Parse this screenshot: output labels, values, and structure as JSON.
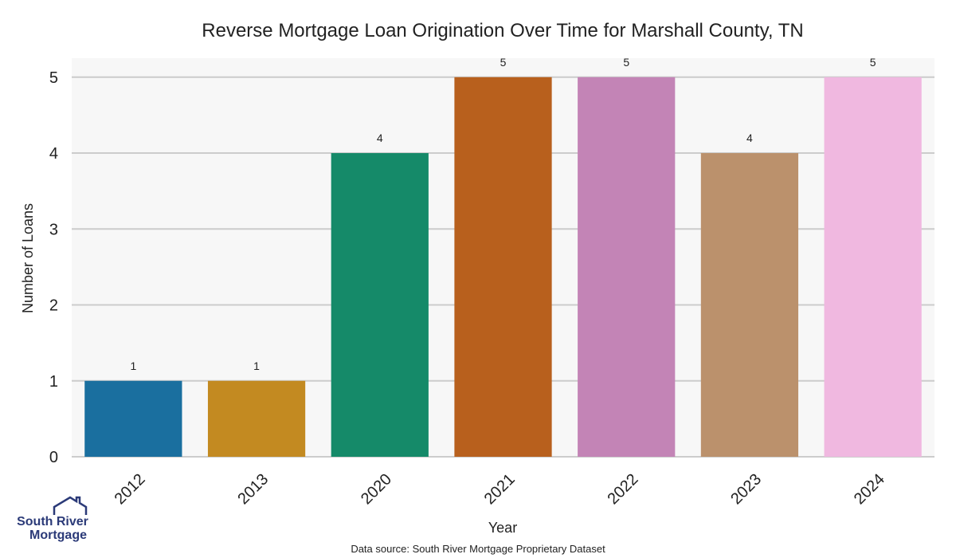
{
  "chart_data": {
    "type": "bar",
    "title": "Reverse Mortgage Loan Origination Over Time for Marshall County, TN",
    "xlabel": "Year",
    "ylabel": "Number of Loans",
    "categories": [
      "2012",
      "2013",
      "2020",
      "2021",
      "2022",
      "2023",
      "2024"
    ],
    "values": [
      1,
      1,
      4,
      5,
      5,
      4,
      5
    ],
    "colors": [
      "#1a6f9f",
      "#c38a21",
      "#158a69",
      "#b8601d",
      "#c384b6",
      "#bb916c",
      "#f0b8e0"
    ],
    "ylim": [
      0,
      5.25
    ],
    "yticks": [
      0,
      1,
      2,
      3,
      4,
      5
    ],
    "grid": true,
    "background": "#f7f7f7",
    "grid_color": "#cccccc"
  },
  "footer": {
    "source": "Data source: South River Mortgage Proprietary Dataset"
  },
  "logo": {
    "line1": "South River",
    "line2": "Mortgage",
    "color": "#2b3a78"
  }
}
